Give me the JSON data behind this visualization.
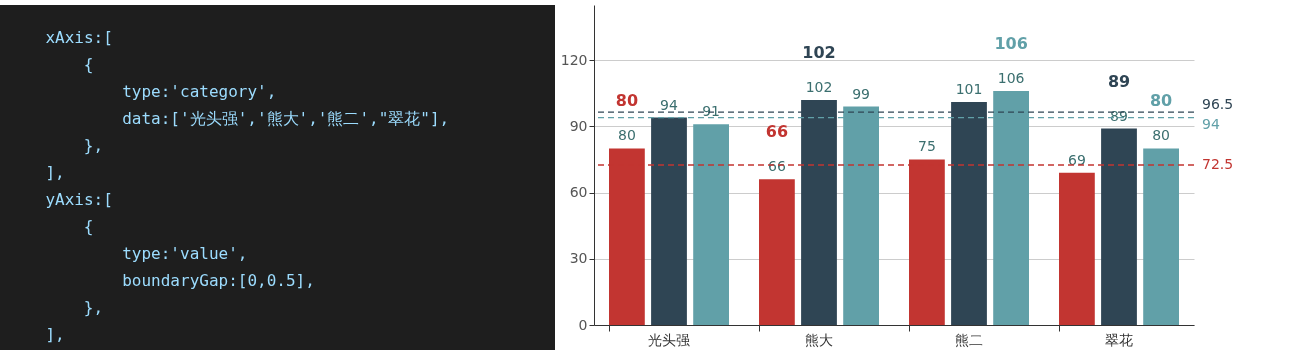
{
  "chart_data": [
    {
      "type": "other",
      "annotations": [
        "    xAxis:[",
        "        {",
        "            type:'category',",
        "            data:['光头强','熊大','熊二',\"翠花\"],",
        "        },",
        "    ],",
        "    yAxis:[",
        "        {",
        "            type:'value',",
        "            boundaryGap:[0,0.5],",
        "        },",
        "    ],"
      ]
    },
    {
      "type": "bar",
      "categories": [
        "光头强",
        "熊大",
        "熊二",
        "翠花"
      ],
      "series": [
        {
          "color": "#c23531",
          "values": [
            80,
            66,
            75,
            69
          ]
        },
        {
          "color": "#2f4554",
          "values": [
            94,
            102,
            101,
            89
          ]
        },
        {
          "color": "#61a0a8",
          "values": [
            91,
            99,
            106,
            80
          ]
        }
      ],
      "ylim": [
        0,
        145
      ],
      "yticks": [
        0,
        30,
        60,
        90,
        120
      ],
      "grid": "y",
      "legend": false,
      "data_labels": true,
      "annotations": [
        "80",
        "66",
        "102",
        "89",
        "106",
        "80"
      ],
      "ref_lines": [
        {
          "axis": "y",
          "value": 72.5,
          "label": "72.5",
          "color": "#c23531",
          "line_style": "dashed"
        },
        {
          "axis": "y",
          "value": 96.5,
          "label": "96.5",
          "color": "#2f4554",
          "line_style": "dashed"
        },
        {
          "axis": "y",
          "value": 94,
          "label": "94",
          "color": "#61a0a8",
          "line_style": "dashed"
        }
      ]
    }
  ]
}
